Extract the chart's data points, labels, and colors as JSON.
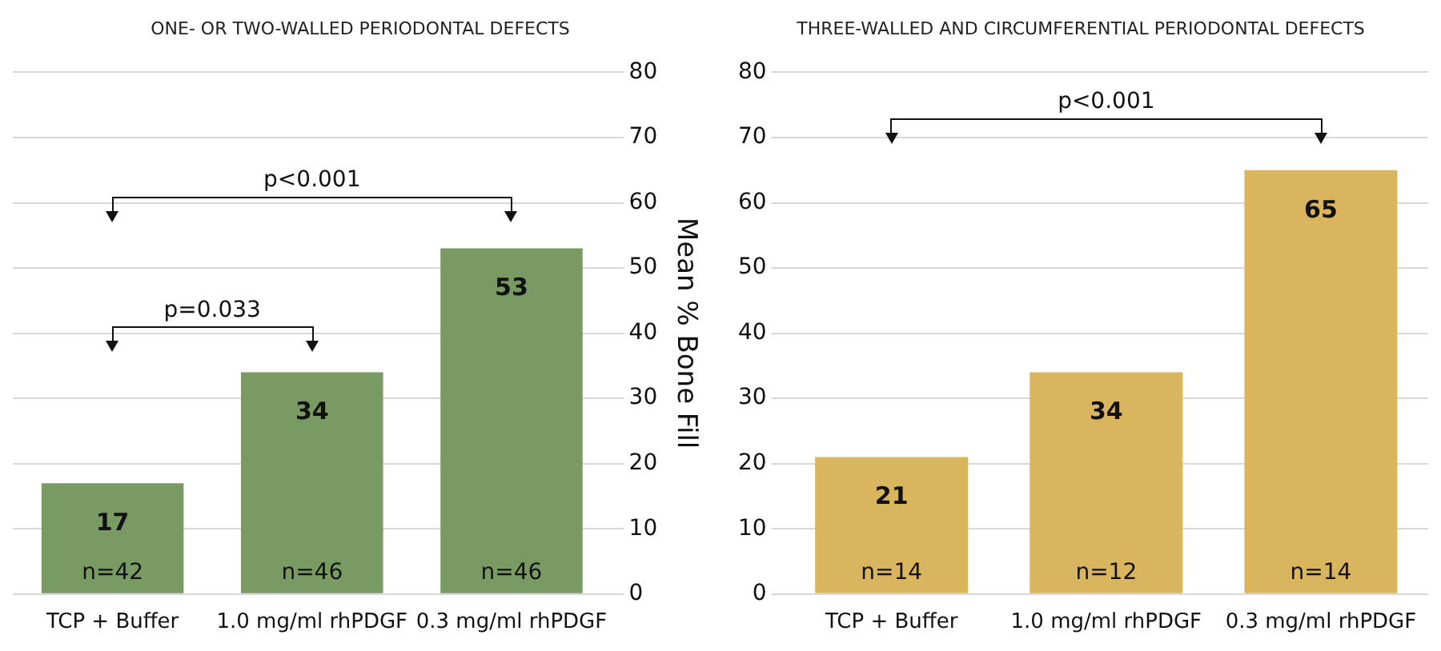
{
  "chart_data": [
    {
      "type": "bar",
      "title": "ONE- OR TWO-WALLED PERIODONTAL DEFECTS",
      "ylabel": "Mean % Bone Fill",
      "categories": [
        "TCP + Buffer",
        "1.0 mg/ml rhPDGF",
        "0.3 mg/ml rhPDGF"
      ],
      "values": [
        17,
        34,
        53
      ],
      "color": "#7a9a64",
      "ylim": [
        0,
        80
      ],
      "yticks": [
        0,
        10,
        20,
        30,
        40,
        50,
        60,
        70,
        80
      ],
      "grid": "y",
      "data_labels": true,
      "annotations": [
        "n=42",
        "n=46",
        "n=46",
        "p=0.033",
        "p<0.001"
      ]
    },
    {
      "type": "bar",
      "title": "THREE-WALLED AND CIRCUMFERENTIAL PERIODONTAL DEFECTS",
      "categories": [
        "TCP + Buffer",
        "1.0 mg/ml rhPDGF",
        "0.3 mg/ml rhPDGF"
      ],
      "values": [
        21,
        34,
        65
      ],
      "color": "#d9b55e",
      "ylim": [
        0,
        80
      ],
      "yticks": [
        0,
        10,
        20,
        30,
        40,
        50,
        60,
        70,
        80
      ],
      "grid": "y",
      "data_labels": true,
      "annotations": [
        "n=14",
        "n=12",
        "n=14",
        "p<0.001"
      ]
    }
  ]
}
